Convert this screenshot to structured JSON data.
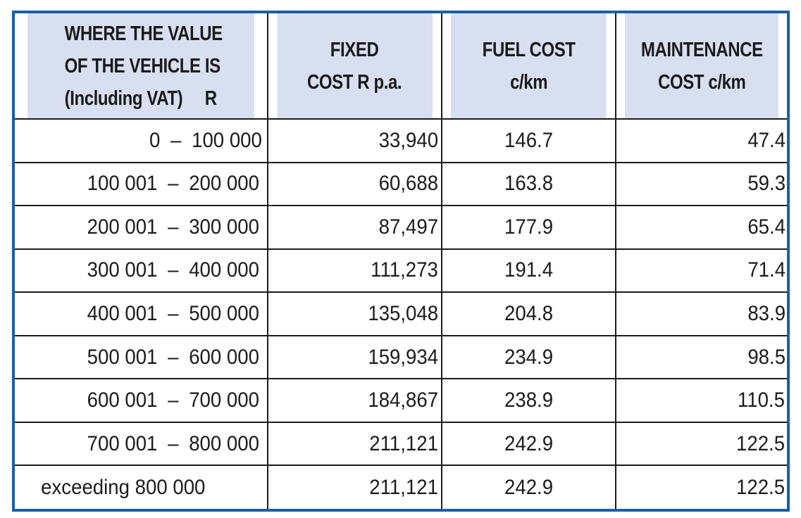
{
  "table": {
    "headers": {
      "range": [
        "WHERE THE VALUE",
        "OF THE VEHICLE IS",
        "(Including VAT)"
      ],
      "range_unit": "R",
      "fixed": [
        "FIXED",
        "COST R p.a."
      ],
      "fuel": [
        "FUEL COST",
        "c/km"
      ],
      "maintenance": [
        "MAINTENANCE",
        "COST c/km"
      ]
    },
    "rows": [
      {
        "from": "0",
        "to": "100 000",
        "fixed": "33,940",
        "fuel": "146.7",
        "maintenance": "47.4"
      },
      {
        "from": "100 001",
        "to": "200 000",
        "fixed": "60,688",
        "fuel": "163.8",
        "maintenance": "59.3"
      },
      {
        "from": "200 001",
        "to": "300 000",
        "fixed": "87,497",
        "fuel": "177.9",
        "maintenance": "65.4"
      },
      {
        "from": "300 001",
        "to": "400 000",
        "fixed": "111,273",
        "fuel": "191.4",
        "maintenance": "71.4"
      },
      {
        "from": "400 001",
        "to": "500 000",
        "fixed": "135,048",
        "fuel": "204.8",
        "maintenance": "83.9"
      },
      {
        "from": "500 001",
        "to": "600 000",
        "fixed": "159,934",
        "fuel": "234.9",
        "maintenance": "98.5"
      },
      {
        "from": "600 001",
        "to": "700 000",
        "fixed": "184,867",
        "fuel": "238.9",
        "maintenance": "110.5"
      },
      {
        "from": "700 001",
        "to": "800 000",
        "fixed": "211,121",
        "fuel": "242.9",
        "maintenance": "122.5"
      }
    ],
    "last_row": {
      "range": "exceeding 800 000",
      "fixed": "211,121",
      "fuel": "242.9",
      "maintenance": "122.5"
    },
    "range_separator": "–"
  },
  "colors": {
    "border_accent": "#1a5fa6",
    "header_bg": "#d8dff0",
    "text": "#1b1b1b"
  }
}
